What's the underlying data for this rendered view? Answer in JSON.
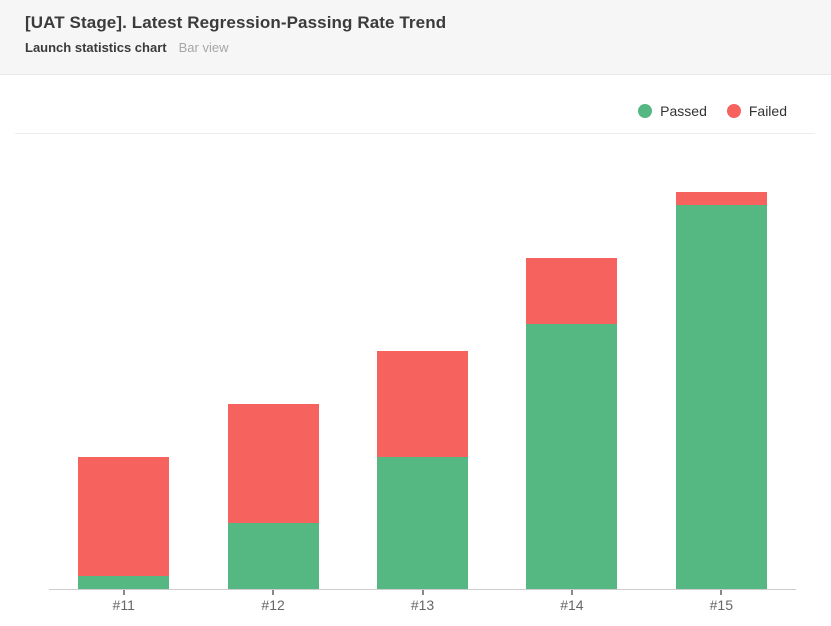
{
  "header": {
    "title": "[UAT Stage]. Latest Regression-Passing Rate Trend",
    "subtitle": "Launch statistics chart",
    "view_label": "Bar view"
  },
  "legend": {
    "items": [
      {
        "label": "Passed",
        "color": "#55b882"
      },
      {
        "label": "Failed",
        "color": "#f6625e"
      }
    ]
  },
  "chart_data": {
    "type": "bar",
    "stacked": true,
    "title": "[UAT Stage]. Latest Regression-Passing Rate Trend",
    "categories": [
      "#11",
      "#12",
      "#13",
      "#14",
      "#15"
    ],
    "series": [
      {
        "name": "Passed",
        "color": "#55b882",
        "values": [
          5,
          25,
          50,
          100,
          145
        ]
      },
      {
        "name": "Failed",
        "color": "#f6625e",
        "values": [
          45,
          45,
          40,
          25,
          5
        ]
      }
    ],
    "totals": [
      50,
      70,
      90,
      125,
      150
    ],
    "xlabel": "",
    "ylabel": "",
    "ylim": [
      0,
      170
    ],
    "grid": false,
    "y_axis_labels_visible": false,
    "legend_position": "top-right"
  }
}
